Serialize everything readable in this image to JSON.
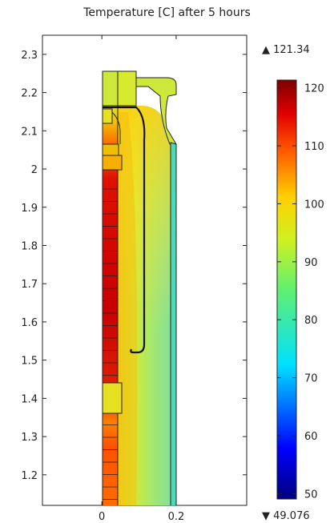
{
  "chart_data": {
    "type": "heatmap",
    "title": "Temperature [C] after 5 hours",
    "xlim": [
      -0.16,
      0.39
    ],
    "ylim": [
      1.12,
      2.35
    ],
    "x_ticks": [
      "0",
      "0.2"
    ],
    "x_tick_values": [
      0,
      0.2
    ],
    "y_ticks": [
      "2.3",
      "2.2",
      "2.1",
      "2",
      "1.9",
      "1.8",
      "1.7",
      "1.6",
      "1.5",
      "1.4",
      "1.3",
      "1.2"
    ],
    "y_tick_values": [
      2.3,
      2.2,
      2.1,
      2.0,
      1.9,
      1.8,
      1.7,
      1.6,
      1.5,
      1.4,
      1.3,
      1.2
    ],
    "colorbar": {
      "min": 49.076,
      "max": 121.34,
      "max_label": "▲ 121.34",
      "min_label": "▼ 49.076",
      "ticks": [
        "120",
        "110",
        "100",
        "90",
        "80",
        "70",
        "60",
        "50"
      ],
      "tick_values": [
        120,
        110,
        100,
        90,
        80,
        70,
        60,
        50
      ],
      "colormap": "rainbow"
    },
    "grid": false
  }
}
